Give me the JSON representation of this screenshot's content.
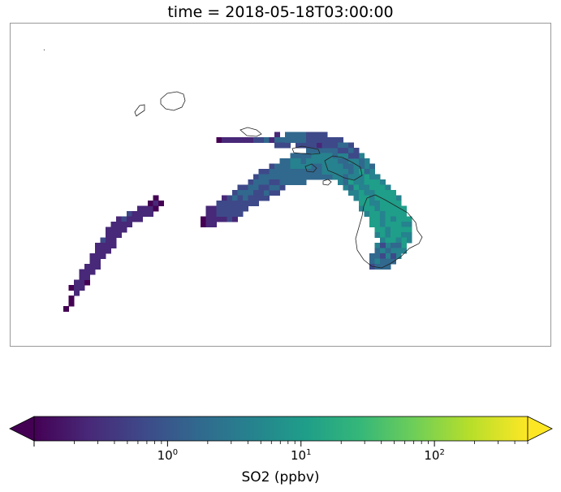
{
  "title": "time = 2018-05-18T03:00:00",
  "colorbar": {
    "label": "SO2 (ppbv)",
    "scale": "log",
    "range": [
      0.1,
      500
    ],
    "extend": "both",
    "colormap": "viridis",
    "ticks": [
      {
        "base": "10",
        "exp": "0",
        "value": 1
      },
      {
        "base": "10",
        "exp": "1",
        "value": 10
      },
      {
        "base": "10",
        "exp": "2",
        "value": 100
      }
    ],
    "colors": [
      "#440154",
      "#482878",
      "#3e4989",
      "#31688e",
      "#26828e",
      "#1f9e89",
      "#35b779",
      "#6ece58",
      "#b5de2b",
      "#fde725"
    ]
  },
  "plume": {
    "description_color_high": "#fde725",
    "description_color_low": "#440154"
  }
}
